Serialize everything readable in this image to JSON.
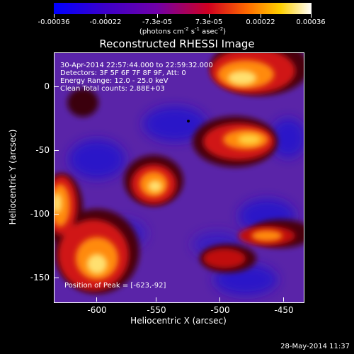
{
  "colorbar": {
    "labels": [
      "-0.00036",
      "-0.00022",
      "-7.3e-05",
      "7.3e-05",
      "0.00022",
      "0.00036"
    ],
    "units_prefix": "(photons cm",
    "units_exp1": "-2",
    "units_mid": " s",
    "units_exp2": "-1",
    "units_mid2": " asec",
    "units_exp3": "-2",
    "units_suffix": ")"
  },
  "title": "Reconstructed RHESSI Image",
  "annotations": {
    "time": "30-Apr-2014 22:57:44.000 to 22:59:32.000",
    "detectors": "Detectors: 3F 5F 6F 7F 8F 9F, Att: 0",
    "energy": "Energy Range: 12.0 - 25.0 keV",
    "clean": "Clean    Total counts: 2.88E+03",
    "peak": "Position of Peak = [-623,-92]"
  },
  "axes": {
    "xlabel": "Heliocentric X (arcsec)",
    "ylabel": "Heliocentric Y (arcsec)",
    "xticks": [
      "-600",
      "-550",
      "-500",
      "-450"
    ],
    "yticks": [
      "0",
      "-50",
      "-100",
      "-150"
    ]
  },
  "footer": "28-May-2014 11:37"
}
